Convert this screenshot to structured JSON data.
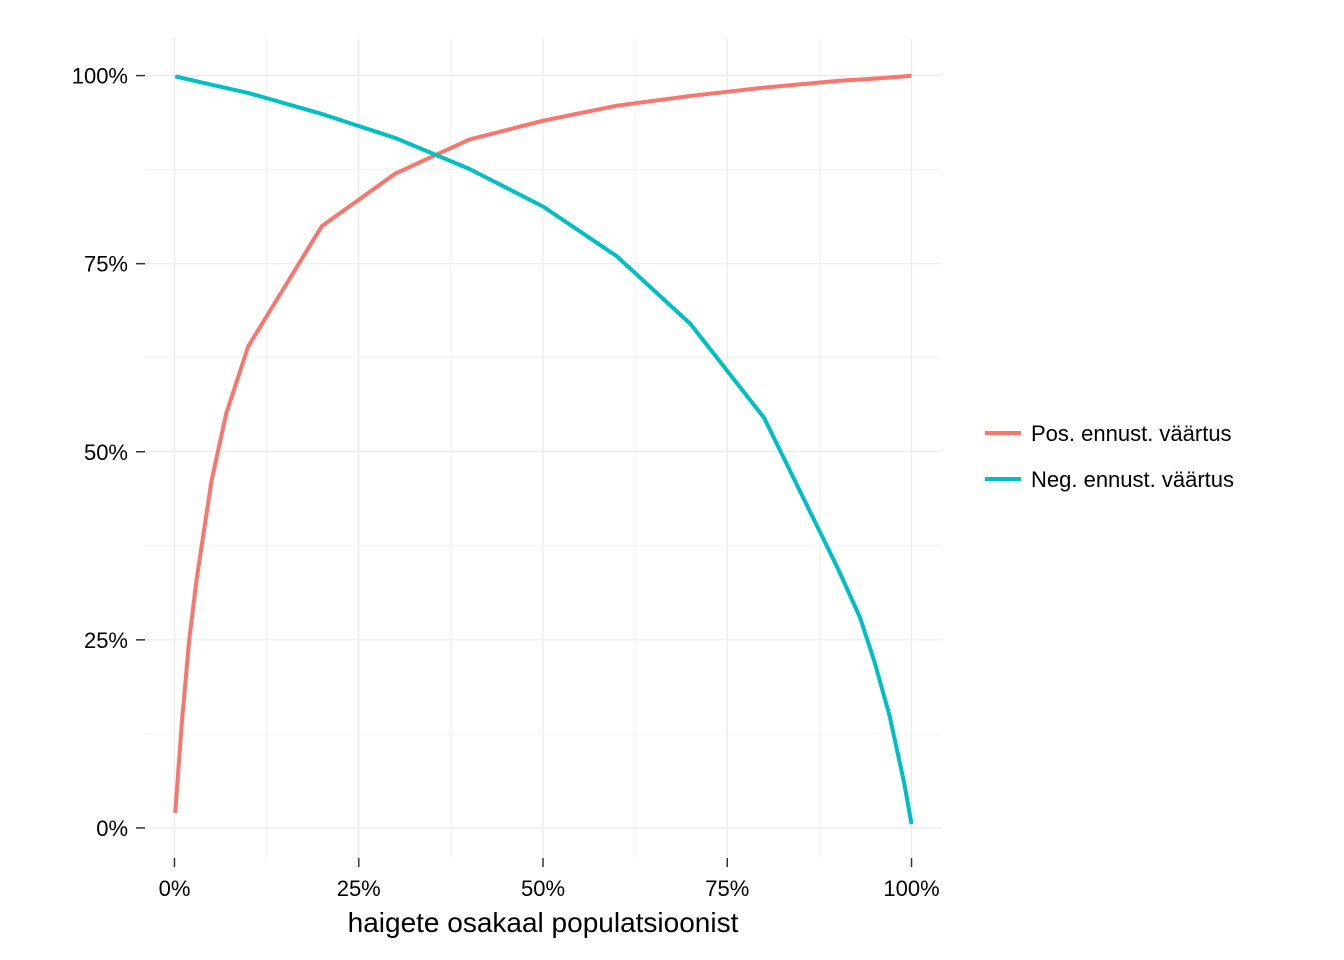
{
  "chart_data": {
    "type": "line",
    "title": "",
    "xlabel": "haigete osakaal populatsioonist",
    "ylabel": "",
    "xlim": [
      -0.04,
      1.04
    ],
    "ylim": [
      -0.04,
      1.05
    ],
    "x_ticks": [
      {
        "value": 0,
        "label": "0%"
      },
      {
        "value": 0.25,
        "label": "25%"
      },
      {
        "value": 0.5,
        "label": "50%"
      },
      {
        "value": 0.75,
        "label": "75%"
      },
      {
        "value": 1,
        "label": "100%"
      }
    ],
    "y_ticks": [
      {
        "value": 0,
        "label": "0%"
      },
      {
        "value": 0.25,
        "label": "25%"
      },
      {
        "value": 0.5,
        "label": "50%"
      },
      {
        "value": 0.75,
        "label": "75%"
      },
      {
        "value": 1,
        "label": "100%"
      }
    ],
    "grid": true,
    "legend_position": "right",
    "series": [
      {
        "name": "Pos. ennust. väärtus",
        "color": "#F8766D",
        "x": [
          0.001,
          0.01,
          0.02,
          0.03,
          0.05,
          0.07,
          0.1,
          0.15,
          0.2,
          0.3,
          0.4,
          0.5,
          0.6,
          0.7,
          0.8,
          0.9,
          0.95,
          0.99,
          1.0
        ],
        "y": [
          0.02,
          0.14,
          0.25,
          0.33,
          0.46,
          0.55,
          0.64,
          0.72,
          0.8,
          0.87,
          0.915,
          0.94,
          0.96,
          0.973,
          0.984,
          0.993,
          0.996,
          0.999,
          1.0
        ]
      },
      {
        "name": "Neg. ennust. väärtus",
        "color": "#00BFC4",
        "x": [
          0.001,
          0.05,
          0.1,
          0.2,
          0.3,
          0.4,
          0.5,
          0.6,
          0.7,
          0.8,
          0.9,
          0.93,
          0.95,
          0.97,
          0.99,
          1.0
        ],
        "y": [
          0.999,
          0.988,
          0.977,
          0.949,
          0.917,
          0.876,
          0.826,
          0.76,
          0.67,
          0.545,
          0.345,
          0.28,
          0.22,
          0.15,
          0.06,
          0.005
        ]
      }
    ]
  }
}
